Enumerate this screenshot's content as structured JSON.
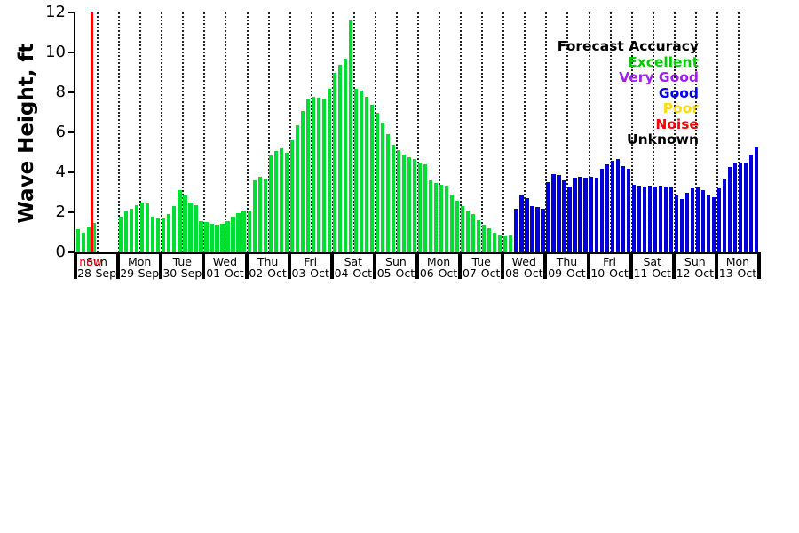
{
  "legend": {
    "title": "Forecast Accuracy",
    "items": [
      {
        "label": "Excellent",
        "color": "#00cc00"
      },
      {
        "label": "Very Good",
        "color": "#a020f0"
      },
      {
        "label": "Good",
        "color": "#0000ee"
      },
      {
        "label": "Poor",
        "color": "#ffdd00"
      },
      {
        "label": "Noise",
        "color": "#ff0000"
      },
      {
        "label": "Unknown",
        "color": "#000000"
      }
    ]
  },
  "chart_data": {
    "type": "bar",
    "title": "",
    "xlabel": "",
    "ylabel": "Wave Height, ft",
    "ylim": [
      0,
      12
    ],
    "yticks": [
      0,
      2,
      4,
      6,
      8,
      10,
      12
    ],
    "bars_per_day": 8,
    "grid": "vertical-dotted-every-half-day",
    "accuracy_segments": [
      {
        "level": "Excellent",
        "color": "#00dd33",
        "from": 0,
        "to": 82
      },
      {
        "level": "Good",
        "color": "#0000dd",
        "from": 82,
        "to": 128
      }
    ],
    "now_marker": {
      "label": "now",
      "color": "#ff0000",
      "day_index": 0,
      "day_fraction": 0.38
    },
    "days": [
      {
        "day": "Sun",
        "date": "28-Sep",
        "values": [
          1.15,
          1.0,
          1.3,
          1.45,
          0,
          0,
          0,
          0
        ]
      },
      {
        "day": "Mon",
        "date": "29-Sep",
        "values": [
          1.8,
          2.05,
          2.2,
          2.35,
          2.5,
          2.45,
          1.8,
          1.75
        ]
      },
      {
        "day": "Tue",
        "date": "30-Sep",
        "values": [
          1.75,
          1.9,
          2.3,
          3.1,
          2.85,
          2.5,
          2.35,
          1.55
        ]
      },
      {
        "day": "Wed",
        "date": "01-Oct",
        "values": [
          1.5,
          1.42,
          1.38,
          1.42,
          1.55,
          1.8,
          1.95,
          2.05
        ]
      },
      {
        "day": "Thu",
        "date": "02-Oct",
        "values": [
          2.1,
          3.6,
          3.8,
          3.7,
          4.85,
          5.05,
          5.2,
          5.0
        ]
      },
      {
        "day": "Fri",
        "date": "03-Oct",
        "values": [
          5.6,
          6.35,
          7.05,
          7.7,
          7.8,
          7.75,
          7.7,
          8.2
        ]
      },
      {
        "day": "Sat",
        "date": "04-Oct",
        "values": [
          9.0,
          9.4,
          9.7,
          11.6,
          8.2,
          8.1,
          7.8,
          7.4
        ]
      },
      {
        "day": "Sun",
        "date": "05-Oct",
        "values": [
          7.0,
          6.5,
          5.9,
          5.4,
          5.1,
          4.9,
          4.75,
          4.65
        ]
      },
      {
        "day": "Mon",
        "date": "06-Oct",
        "values": [
          4.5,
          4.4,
          3.6,
          3.45,
          3.4,
          3.35,
          2.9,
          2.6
        ]
      },
      {
        "day": "Tue",
        "date": "07-Oct",
        "values": [
          2.3,
          2.1,
          1.9,
          1.6,
          1.4,
          1.2,
          1.0,
          0.85
        ]
      },
      {
        "day": "Wed",
        "date": "08-Oct",
        "values": [
          0.8,
          0.85,
          2.2,
          2.85,
          2.7,
          2.3,
          2.25,
          2.2
        ]
      },
      {
        "day": "Thu",
        "date": "09-Oct",
        "values": [
          3.5,
          3.9,
          3.85,
          3.6,
          3.3,
          3.75,
          3.8,
          3.75
        ]
      },
      {
        "day": "Fri",
        "date": "10-Oct",
        "values": [
          3.8,
          3.75,
          4.2,
          4.4,
          4.6,
          4.65,
          4.3,
          4.2
        ]
      },
      {
        "day": "Sat",
        "date": "11-Oct",
        "values": [
          3.4,
          3.35,
          3.3,
          3.35,
          3.3,
          3.35,
          3.3,
          3.25
        ]
      },
      {
        "day": "Sun",
        "date": "12-Oct",
        "values": [
          2.85,
          2.65,
          3.0,
          3.2,
          3.25,
          3.1,
          2.85,
          2.75
        ]
      },
      {
        "day": "Mon",
        "date": "13-Oct",
        "values": [
          3.2,
          3.7,
          4.25,
          4.5,
          4.45,
          4.5,
          4.9,
          5.3
        ]
      }
    ]
  }
}
